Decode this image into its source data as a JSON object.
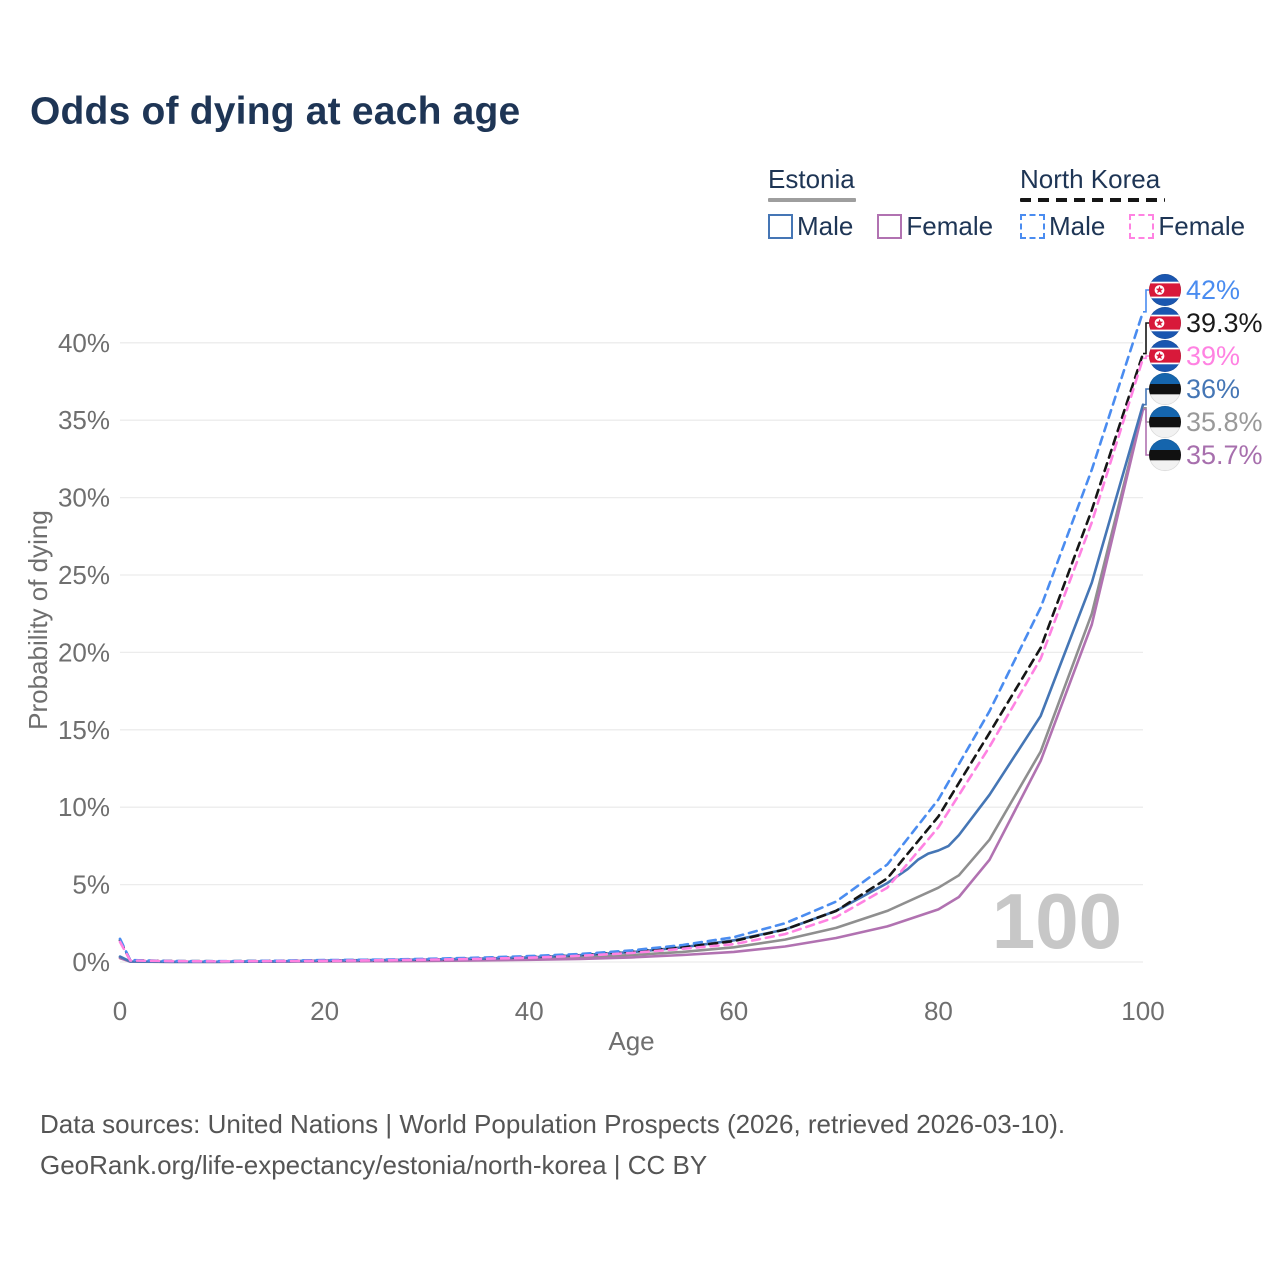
{
  "title": "Odds of dying at each age",
  "legend": {
    "groups": [
      {
        "name": "Estonia",
        "line_style": "solid",
        "underline_color": "#9e9e9e",
        "items": [
          {
            "label": "Male",
            "color": "#4576b5"
          },
          {
            "label": "Female",
            "color": "#b172b1"
          }
        ]
      },
      {
        "name": "North Korea",
        "line_style": "dashed",
        "underline_color": "#161616",
        "items": [
          {
            "label": "Male",
            "color": "#4a8cf0"
          },
          {
            "label": "Female",
            "color": "#ff82e2"
          }
        ]
      }
    ]
  },
  "watermark": "100",
  "footer": {
    "line1": "Data sources: United Nations | World Population Prospects (2026, retrieved 2026-03-10).",
    "line2": "GeoRank.org/life-expectancy/estonia/north-korea | CC BY"
  },
  "chart_data": {
    "type": "line",
    "title": "Odds of dying at each age",
    "xlabel": "Age",
    "ylabel": "Probability of dying",
    "xlim": [
      0,
      100
    ],
    "ylim": [
      0,
      43.5
    ],
    "grid": "horizontal-only",
    "legend_position": "top-right",
    "x_ticks": [
      0,
      20,
      40,
      60,
      80,
      100
    ],
    "x_tick_labels": [
      "0",
      "20",
      "40",
      "60",
      "80",
      "100"
    ],
    "y_ticks": [
      0,
      5,
      10,
      15,
      20,
      25,
      30,
      35,
      40
    ],
    "y_tick_labels": [
      "0%",
      "5%",
      "10%",
      "15%",
      "20%",
      "25%",
      "30%",
      "35%",
      "40%"
    ],
    "series": [
      {
        "name": "Estonia both sexes",
        "country": "Estonia",
        "sex": "both",
        "color": "#8f8f8f",
        "line_style": "solid",
        "flag": "estonia",
        "end_label": "35.8%",
        "label_color": "#999999",
        "points": [
          [
            0,
            0.3
          ],
          [
            1,
            0.025
          ],
          [
            5,
            0.012
          ],
          [
            10,
            0.012
          ],
          [
            15,
            0.03
          ],
          [
            20,
            0.06
          ],
          [
            25,
            0.08
          ],
          [
            30,
            0.11
          ],
          [
            35,
            0.15
          ],
          [
            40,
            0.21
          ],
          [
            45,
            0.3
          ],
          [
            50,
            0.45
          ],
          [
            55,
            0.65
          ],
          [
            60,
            0.95
          ],
          [
            65,
            1.45
          ],
          [
            70,
            2.2
          ],
          [
            75,
            3.3
          ],
          [
            80,
            4.8
          ],
          [
            82,
            5.6
          ],
          [
            85,
            7.9
          ],
          [
            90,
            13.6
          ],
          [
            95,
            22.5
          ],
          [
            100,
            35.8
          ]
        ]
      },
      {
        "name": "Estonia female",
        "country": "Estonia",
        "sex": "female",
        "color": "#b172b1",
        "line_style": "solid",
        "flag": "estonia",
        "end_label": "35.7%",
        "label_color": "#a76fad",
        "points": [
          [
            0,
            0.25
          ],
          [
            1,
            0.02
          ],
          [
            5,
            0.01
          ],
          [
            10,
            0.01
          ],
          [
            15,
            0.02
          ],
          [
            20,
            0.035
          ],
          [
            25,
            0.05
          ],
          [
            30,
            0.07
          ],
          [
            35,
            0.1
          ],
          [
            40,
            0.14
          ],
          [
            45,
            0.2
          ],
          [
            50,
            0.3
          ],
          [
            55,
            0.45
          ],
          [
            60,
            0.65
          ],
          [
            65,
            1.0
          ],
          [
            70,
            1.55
          ],
          [
            75,
            2.3
          ],
          [
            80,
            3.4
          ],
          [
            82,
            4.2
          ],
          [
            85,
            6.6
          ],
          [
            90,
            13.0
          ],
          [
            95,
            21.8
          ],
          [
            100,
            35.7
          ]
        ]
      },
      {
        "name": "Estonia male",
        "country": "Estonia",
        "sex": "male",
        "color": "#4576b5",
        "line_style": "solid",
        "flag": "estonia",
        "end_label": "36%",
        "label_color": "#4576b5",
        "points": [
          [
            0,
            0.35
          ],
          [
            1,
            0.03
          ],
          [
            5,
            0.015
          ],
          [
            10,
            0.015
          ],
          [
            15,
            0.04
          ],
          [
            20,
            0.09
          ],
          [
            25,
            0.12
          ],
          [
            30,
            0.16
          ],
          [
            35,
            0.21
          ],
          [
            40,
            0.3
          ],
          [
            45,
            0.44
          ],
          [
            50,
            0.64
          ],
          [
            55,
            0.95
          ],
          [
            60,
            1.4
          ],
          [
            65,
            2.1
          ],
          [
            70,
            3.3
          ],
          [
            75,
            5.1
          ],
          [
            77,
            6.0
          ],
          [
            78,
            6.6
          ],
          [
            79,
            7.0
          ],
          [
            80,
            7.2
          ],
          [
            81,
            7.5
          ],
          [
            82,
            8.2
          ],
          [
            85,
            10.8
          ],
          [
            90,
            15.9
          ],
          [
            95,
            24.5
          ],
          [
            100,
            36
          ]
        ]
      },
      {
        "name": "North Korea both sexes",
        "country": "North Korea",
        "sex": "both",
        "color": "#161616",
        "line_style": "dashed",
        "flag": "north-korea",
        "end_label": "39.3%",
        "label_color": "#1a1a1a",
        "points": [
          [
            0,
            1.4
          ],
          [
            1,
            0.11
          ],
          [
            5,
            0.055
          ],
          [
            10,
            0.045
          ],
          [
            15,
            0.07
          ],
          [
            20,
            0.1
          ],
          [
            25,
            0.13
          ],
          [
            30,
            0.17
          ],
          [
            35,
            0.24
          ],
          [
            40,
            0.33
          ],
          [
            45,
            0.45
          ],
          [
            50,
            0.65
          ],
          [
            55,
            0.95
          ],
          [
            60,
            1.35
          ],
          [
            65,
            2.1
          ],
          [
            70,
            3.3
          ],
          [
            75,
            5.4
          ],
          [
            80,
            9.4
          ],
          [
            85,
            14.8
          ],
          [
            90,
            20.3
          ],
          [
            95,
            29.2
          ],
          [
            100,
            39.3
          ]
        ]
      },
      {
        "name": "North Korea male",
        "country": "North Korea",
        "sex": "male",
        "color": "#4a8cf0",
        "line_style": "dashed",
        "flag": "north-korea",
        "end_label": "42%",
        "label_color": "#4a8cf0",
        "points": [
          [
            0,
            1.5
          ],
          [
            1,
            0.12
          ],
          [
            5,
            0.06
          ],
          [
            10,
            0.05
          ],
          [
            15,
            0.08
          ],
          [
            20,
            0.12
          ],
          [
            25,
            0.15
          ],
          [
            30,
            0.2
          ],
          [
            35,
            0.28
          ],
          [
            40,
            0.38
          ],
          [
            45,
            0.52
          ],
          [
            50,
            0.75
          ],
          [
            55,
            1.1
          ],
          [
            60,
            1.6
          ],
          [
            65,
            2.5
          ],
          [
            70,
            3.9
          ],
          [
            75,
            6.3
          ],
          [
            80,
            10.5
          ],
          [
            85,
            16.2
          ],
          [
            90,
            22.9
          ],
          [
            95,
            31.8
          ],
          [
            100,
            42
          ]
        ]
      },
      {
        "name": "North Korea female",
        "country": "North Korea",
        "sex": "female",
        "color": "#ff82e2",
        "line_style": "dashed",
        "flag": "north-korea",
        "end_label": "39%",
        "label_color": "#ff82e2",
        "points": [
          [
            0,
            1.3
          ],
          [
            1,
            0.1
          ],
          [
            5,
            0.05
          ],
          [
            10,
            0.04
          ],
          [
            15,
            0.06
          ],
          [
            20,
            0.08
          ],
          [
            25,
            0.11
          ],
          [
            30,
            0.15
          ],
          [
            35,
            0.2
          ],
          [
            40,
            0.28
          ],
          [
            45,
            0.4
          ],
          [
            50,
            0.58
          ],
          [
            55,
            0.85
          ],
          [
            60,
            1.15
          ],
          [
            65,
            1.8
          ],
          [
            70,
            2.9
          ],
          [
            75,
            4.8
          ],
          [
            80,
            8.7
          ],
          [
            85,
            13.9
          ],
          [
            90,
            19.6
          ],
          [
            95,
            28.4
          ],
          [
            100,
            39
          ]
        ]
      }
    ],
    "end_label_order_top_to_bottom": [
      "42%",
      "39.3%",
      "39%",
      "36%",
      "35.8%",
      "35.7%"
    ]
  }
}
